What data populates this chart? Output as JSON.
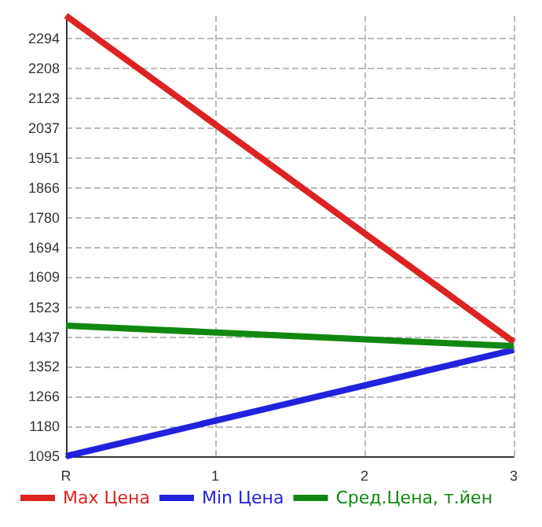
{
  "chart_data": {
    "type": "line",
    "categories": [
      "R",
      "1",
      "2",
      "3"
    ],
    "series": [
      {
        "name": "Max Цена",
        "color": "#dd2222",
        "values": [
          2360,
          null,
          null,
          1423
        ]
      },
      {
        "name": "Min Цена",
        "color": "#2222dd",
        "values": [
          1095,
          null,
          null,
          1400
        ]
      },
      {
        "name": "Сред.Цена, т.йен",
        "color": "#118811",
        "values": [
          1470,
          null,
          null,
          1411
        ]
      }
    ],
    "ylim": [
      1095,
      2360
    ],
    "yticks": [
      1095,
      1180,
      1266,
      1352,
      1437,
      1523,
      1609,
      1694,
      1780,
      1866,
      1951,
      2037,
      2123,
      2208,
      2294
    ],
    "grid": true,
    "legend": "bottom",
    "marker": "none"
  }
}
